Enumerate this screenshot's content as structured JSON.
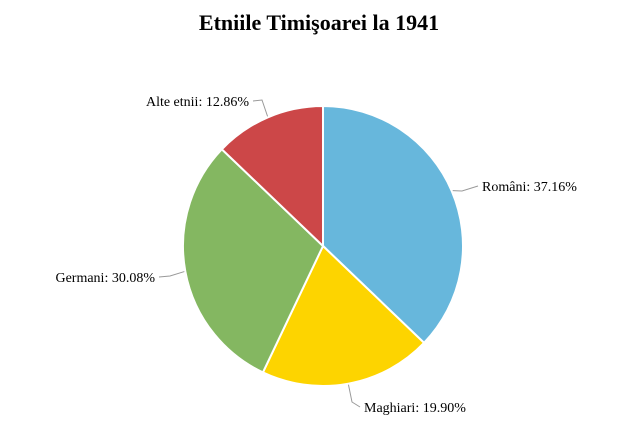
{
  "chart_data": {
    "type": "pie",
    "title": "Etniile Timişoarei la 1941",
    "slices": [
      {
        "name": "Români",
        "value": 37.16,
        "label": "Români: 37.16%",
        "color": "#67b7dc"
      },
      {
        "name": "Maghiari",
        "value": 19.9,
        "label": "Maghiari: 19.90%",
        "color": "#fdd400"
      },
      {
        "name": "Germani",
        "value": 30.08,
        "label": "Germani: 30.08%",
        "color": "#84b761"
      },
      {
        "name": "Alte etnii",
        "value": 12.86,
        "label": "Alte etnii: 12.86%",
        "color": "#cc4748"
      }
    ],
    "legend": "none",
    "start_angle": "top, clockwise"
  }
}
